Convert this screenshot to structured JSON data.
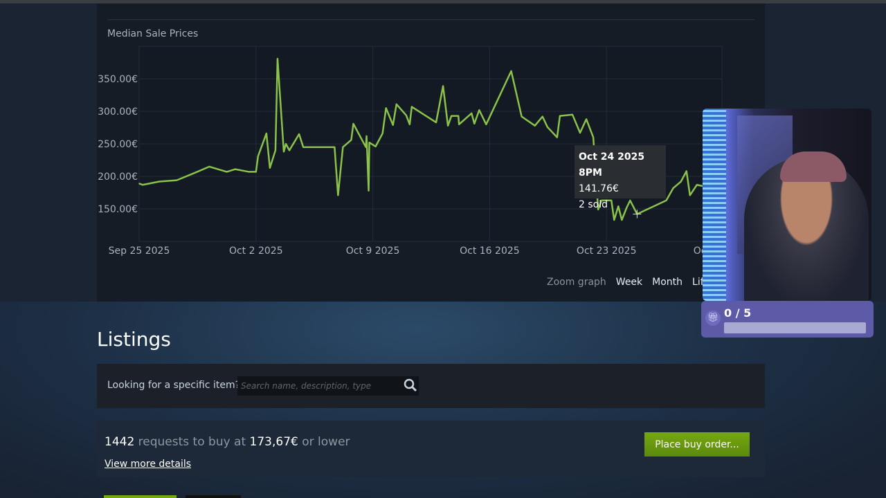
{
  "chart_section": {
    "zoom_label": "Zoom graph",
    "zoom_options": [
      "Week",
      "Month",
      "Lifetime"
    ],
    "tooltip": {
      "date": "Oct 24 2025 8PM",
      "price": "141.76€",
      "sold": "2 sold"
    }
  },
  "chart_data": {
    "type": "line",
    "title": "Median Sale Prices",
    "xlabel": "",
    "ylabel": "",
    "x_tick_labels": [
      "Sep 25 2025",
      "Oct 2 2025",
      "Oct 9 2025",
      "Oct 16 2025",
      "Oct 23 2025",
      "Oct 30 2025"
    ],
    "x_ticks": [
      "2025-09-25T00:00",
      "2025-10-02T00:00",
      "2025-10-09T00:00",
      "2025-10-16T00:00",
      "2025-10-23T00:00",
      "2025-10-30T00:00"
    ],
    "y_tick_labels": [
      "150.00€",
      "200.00€",
      "250.00€",
      "300.00€",
      "350.00€"
    ],
    "y_ticks": [
      150,
      200,
      250,
      300,
      350
    ],
    "xlim": [
      "2025-09-25T00:00",
      "2025-10-29T22:00"
    ],
    "ylim": [
      100,
      400
    ],
    "grid": true,
    "line_color": "#8bc34a",
    "series": [
      {
        "points": [
          [
            "2025-09-25T00:00",
            189
          ],
          [
            "2025-09-25T05:00",
            187
          ],
          [
            "2025-09-26T05:00",
            192
          ],
          [
            "2025-09-27T06:00",
            194
          ],
          [
            "2025-09-28T07:00",
            205
          ],
          [
            "2025-09-29T05:00",
            215
          ],
          [
            "2025-09-30T06:00",
            207
          ],
          [
            "2025-09-30T18:00",
            211
          ],
          [
            "2025-10-01T14:00",
            207
          ],
          [
            "2025-10-02T00:00",
            207
          ],
          [
            "2025-10-02T03:00",
            231
          ],
          [
            "2025-10-02T15:00",
            266
          ],
          [
            "2025-10-02T20:00",
            213
          ],
          [
            "2025-10-03T04:00",
            240
          ],
          [
            "2025-10-03T07:00",
            381
          ],
          [
            "2025-10-03T16:00",
            238
          ],
          [
            "2025-10-03T19:00",
            250
          ],
          [
            "2025-10-04T00:00",
            240
          ],
          [
            "2025-10-04T14:00",
            265
          ],
          [
            "2025-10-04T20:00",
            245
          ],
          [
            "2025-10-06T17:00",
            245
          ],
          [
            "2025-10-06T22:00",
            171
          ],
          [
            "2025-10-07T05:00",
            245
          ],
          [
            "2025-10-07T17:00",
            256
          ],
          [
            "2025-10-07T20:00",
            281
          ],
          [
            "2025-10-08T14:00",
            245
          ],
          [
            "2025-10-08T15:00",
            262
          ],
          [
            "2025-10-08T18:00",
            178
          ],
          [
            "2025-10-08T19:00",
            252
          ],
          [
            "2025-10-09T04:00",
            246
          ],
          [
            "2025-10-09T14:00",
            266
          ],
          [
            "2025-10-09T19:00",
            305
          ],
          [
            "2025-10-10T05:00",
            279
          ],
          [
            "2025-10-10T10:00",
            311
          ],
          [
            "2025-10-11T00:00",
            294
          ],
          [
            "2025-10-11T05:00",
            280
          ],
          [
            "2025-10-11T08:00",
            307
          ],
          [
            "2025-10-12T19:00",
            283
          ],
          [
            "2025-10-13T05:00",
            339
          ],
          [
            "2025-10-13T12:00",
            278
          ],
          [
            "2025-10-13T17:00",
            293
          ],
          [
            "2025-10-14T03:00",
            293
          ],
          [
            "2025-10-14T04:00",
            280
          ],
          [
            "2025-10-14T22:00",
            297
          ],
          [
            "2025-10-15T02:00",
            281
          ],
          [
            "2025-10-15T09:00",
            302
          ],
          [
            "2025-10-15T19:00",
            280
          ],
          [
            "2025-10-17T07:00",
            362
          ],
          [
            "2025-10-17T22:00",
            292
          ],
          [
            "2025-10-18T17:00",
            278
          ],
          [
            "2025-10-19T04:00",
            292
          ],
          [
            "2025-10-19T11:00",
            276
          ],
          [
            "2025-10-20T01:00",
            260
          ],
          [
            "2025-10-20T05:00",
            293
          ],
          [
            "2025-10-20T23:00",
            295
          ],
          [
            "2025-10-21T10:00",
            267
          ],
          [
            "2025-10-21T19:00",
            288
          ],
          [
            "2025-10-22T05:00",
            260
          ],
          [
            "2025-10-22T06:00",
            244
          ],
          [
            "2025-10-22T12:00",
            149
          ],
          [
            "2025-10-22T17:00",
            163
          ],
          [
            "2025-10-23T07:00",
            163
          ],
          [
            "2025-10-23T11:00",
            133
          ],
          [
            "2025-10-23T17:00",
            154
          ],
          [
            "2025-10-23T22:00",
            133
          ],
          [
            "2025-10-24T05:00",
            152
          ],
          [
            "2025-10-24T10:00",
            163
          ],
          [
            "2025-10-24T20:00",
            142
          ],
          [
            "2025-10-26T14:00",
            163
          ],
          [
            "2025-10-27T00:00",
            182
          ],
          [
            "2025-10-27T11:00",
            192
          ],
          [
            "2025-10-27T19:00",
            208
          ],
          [
            "2025-10-28T00:00",
            171
          ],
          [
            "2025-10-28T10:00",
            187
          ],
          [
            "2025-10-28T19:00",
            185
          ]
        ]
      }
    ]
  },
  "listings": {
    "heading": "Listings",
    "search_label": "Looking for a specific item?",
    "search_placeholder": "Search name, description, type",
    "search_value": ""
  },
  "buy_orders": {
    "count": "1442",
    "text_mid": "requests to buy at",
    "price": "173,67€",
    "text_end": "or lower",
    "view_more": "View more details",
    "button": "Place buy order..."
  },
  "goal_widget": {
    "icon": "gift-icon",
    "count": "0 / 5",
    "progress": 0,
    "color": "#5d5aa8"
  }
}
